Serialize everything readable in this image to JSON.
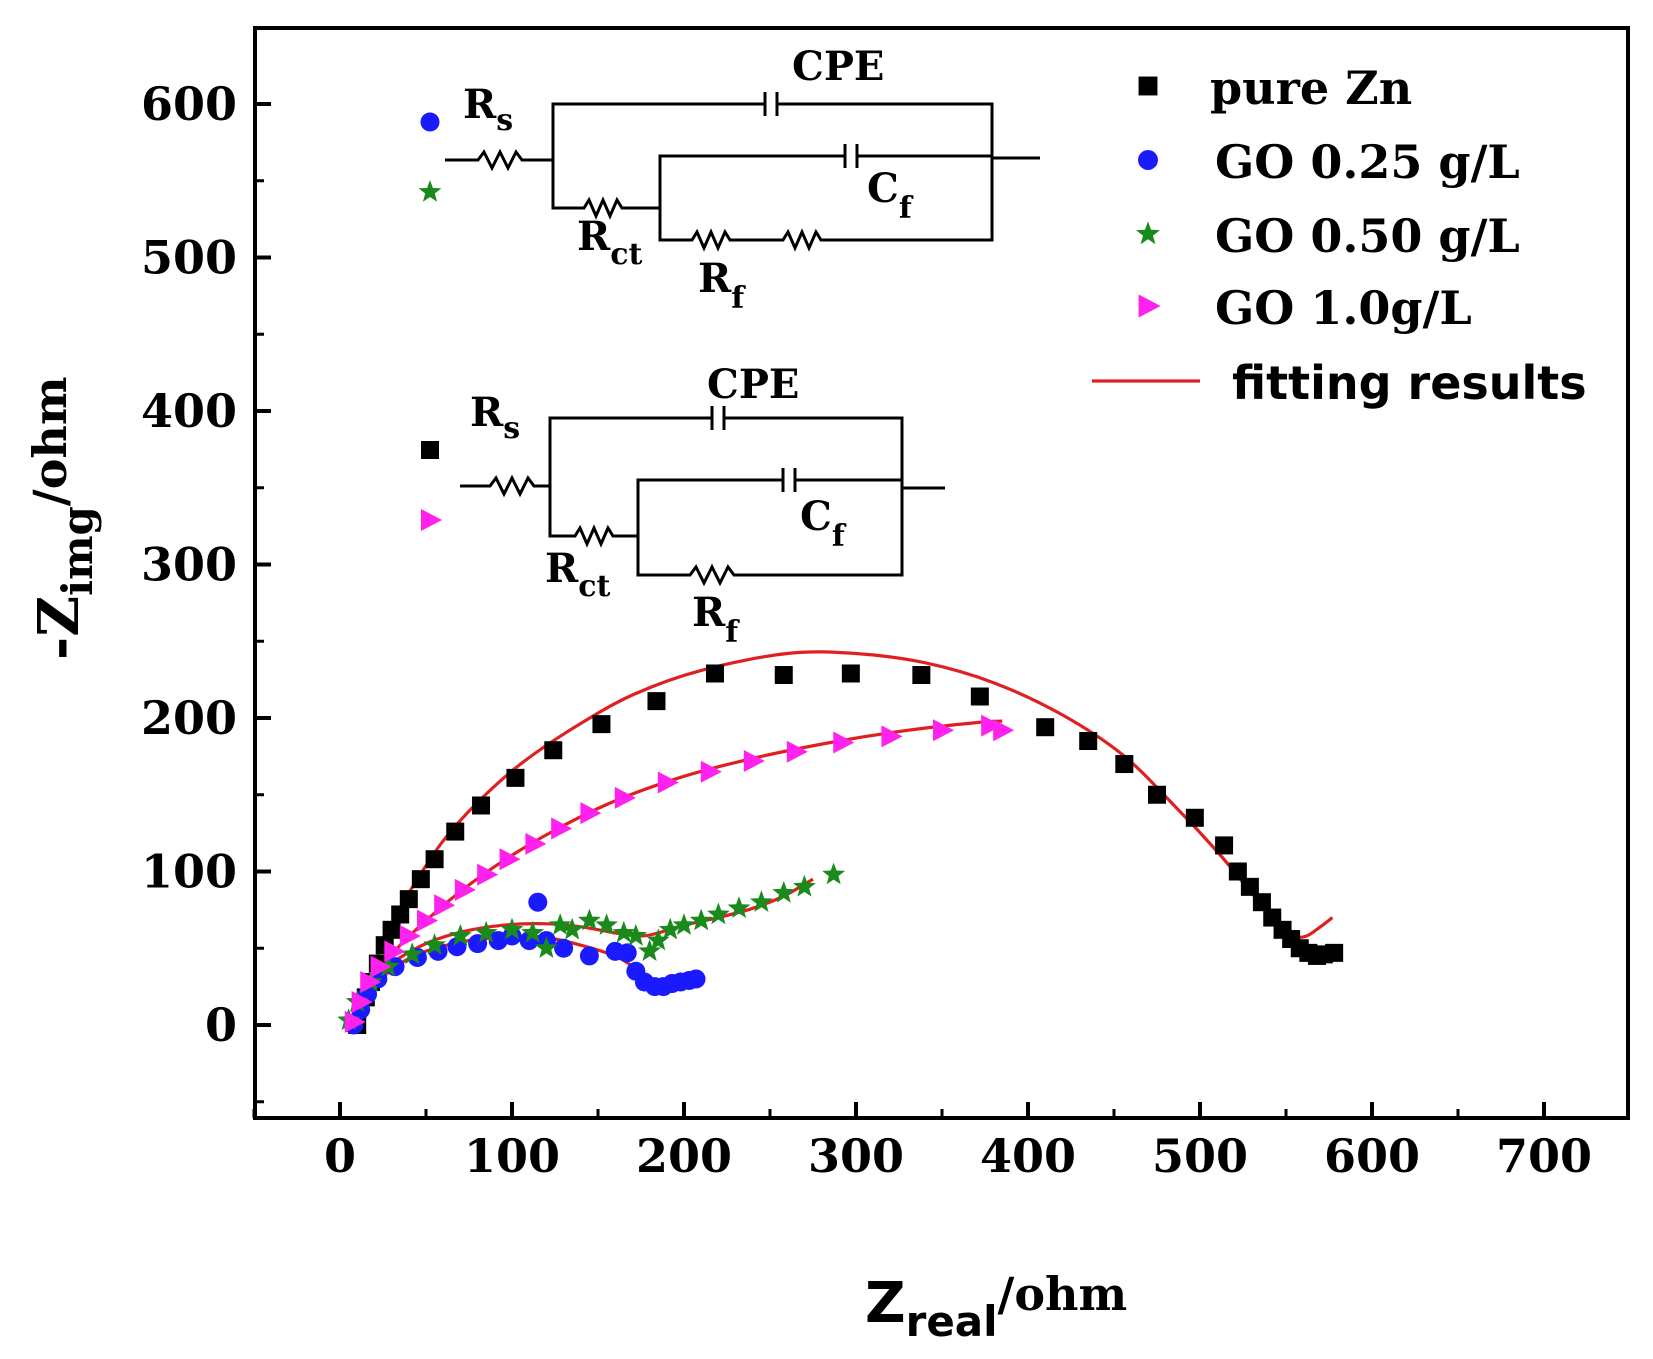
{
  "chart_data": {
    "type": "scatter",
    "title": "",
    "xlabel": {
      "main": "Z",
      "sub": "real",
      "unit": "/ohm"
    },
    "ylabel": {
      "prefix": "-Z",
      "sub": "img",
      "unit": "/ohm"
    },
    "xlim": [
      -50,
      750
    ],
    "ylim": [
      -50,
      650
    ],
    "x_ticks": [
      "0",
      "100",
      "200",
      "300",
      "400",
      "500",
      "600",
      "700"
    ],
    "y_ticks": [
      "0",
      "100",
      "200",
      "300",
      "400",
      "500",
      "600"
    ],
    "grid": false,
    "legend_position": "top-right",
    "series": [
      {
        "name": "pure Zn",
        "marker": "square",
        "color": "#000000",
        "points": [
          [
            10,
            0
          ],
          [
            15,
            18
          ],
          [
            18,
            28
          ],
          [
            22,
            40
          ],
          [
            26,
            52
          ],
          [
            30,
            62
          ],
          [
            35,
            72
          ],
          [
            40,
            82
          ],
          [
            47,
            95
          ],
          [
            55,
            108
          ],
          [
            67,
            126
          ],
          [
            82,
            143
          ],
          [
            102,
            161
          ],
          [
            124,
            179
          ],
          [
            152,
            196
          ],
          [
            184,
            211
          ],
          [
            218,
            229
          ],
          [
            258,
            228
          ],
          [
            297,
            229
          ],
          [
            338,
            228
          ],
          [
            372,
            214
          ],
          [
            410,
            194
          ],
          [
            435,
            185
          ],
          [
            456,
            170
          ],
          [
            475,
            150
          ],
          [
            497,
            135
          ],
          [
            514,
            117
          ],
          [
            522,
            100
          ],
          [
            529,
            90
          ],
          [
            536,
            80
          ],
          [
            542,
            70
          ],
          [
            548,
            62
          ],
          [
            553,
            56
          ],
          [
            558,
            50
          ],
          [
            563,
            47
          ],
          [
            568,
            45
          ],
          [
            572,
            46
          ],
          [
            578,
            47
          ]
        ]
      },
      {
        "name": "GO 0.25 g/L",
        "marker": "circle",
        "color": "#1a1aff",
        "points": [
          [
            8,
            0
          ],
          [
            12,
            10
          ],
          [
            16,
            20
          ],
          [
            22,
            30
          ],
          [
            32,
            38
          ],
          [
            45,
            44
          ],
          [
            57,
            48
          ],
          [
            68,
            51
          ],
          [
            80,
            53
          ],
          [
            92,
            55
          ],
          [
            100,
            58
          ],
          [
            110,
            55
          ],
          [
            115,
            80
          ],
          [
            120,
            55
          ],
          [
            130,
            50
          ],
          [
            145,
            45
          ],
          [
            160,
            48
          ],
          [
            167,
            47
          ],
          [
            172,
            35
          ],
          [
            177,
            28
          ],
          [
            183,
            25
          ],
          [
            188,
            25
          ],
          [
            193,
            27
          ],
          [
            198,
            28
          ],
          [
            203,
            29
          ],
          [
            207,
            30
          ]
        ]
      },
      {
        "name": "GO 0.50 g/L",
        "marker": "star",
        "color": "#1a8a1a",
        "points": [
          [
            5,
            3
          ],
          [
            10,
            15
          ],
          [
            18,
            28
          ],
          [
            28,
            38
          ],
          [
            42,
            46
          ],
          [
            55,
            52
          ],
          [
            70,
            58
          ],
          [
            85,
            60
          ],
          [
            100,
            62
          ],
          [
            112,
            60
          ],
          [
            120,
            50
          ],
          [
            128,
            65
          ],
          [
            135,
            62
          ],
          [
            145,
            68
          ],
          [
            155,
            65
          ],
          [
            165,
            60
          ],
          [
            172,
            58
          ],
          [
            180,
            48
          ],
          [
            185,
            55
          ],
          [
            192,
            62
          ],
          [
            200,
            65
          ],
          [
            210,
            68
          ],
          [
            220,
            72
          ],
          [
            232,
            76
          ],
          [
            245,
            80
          ],
          [
            258,
            86
          ],
          [
            270,
            90
          ],
          [
            287,
            98
          ]
        ]
      },
      {
        "name": "GO 1.0g/L",
        "marker": "triangle",
        "color": "#ff22ee",
        "points": [
          [
            8,
            2
          ],
          [
            12,
            15
          ],
          [
            17,
            28
          ],
          [
            23,
            38
          ],
          [
            31,
            48
          ],
          [
            40,
            58
          ],
          [
            50,
            68
          ],
          [
            60,
            78
          ],
          [
            72,
            88
          ],
          [
            85,
            98
          ],
          [
            98,
            108
          ],
          [
            113,
            118
          ],
          [
            128,
            128
          ],
          [
            145,
            138
          ],
          [
            165,
            148
          ],
          [
            190,
            158
          ],
          [
            215,
            165
          ],
          [
            240,
            172
          ],
          [
            265,
            178
          ],
          [
            292,
            184
          ],
          [
            320,
            188
          ],
          [
            350,
            192
          ],
          [
            378,
            195
          ],
          [
            385,
            192
          ]
        ]
      }
    ],
    "fits": [
      {
        "for": "pure Zn",
        "color": "#e02020",
        "points": [
          [
            10,
            0
          ],
          [
            15,
            22
          ],
          [
            22,
            45
          ],
          [
            32,
            70
          ],
          [
            45,
            95
          ],
          [
            60,
            120
          ],
          [
            80,
            145
          ],
          [
            105,
            170
          ],
          [
            135,
            193
          ],
          [
            170,
            215
          ],
          [
            210,
            231
          ],
          [
            260,
            242
          ],
          [
            300,
            242
          ],
          [
            340,
            236
          ],
          [
            380,
            223
          ],
          [
            420,
            202
          ],
          [
            455,
            176
          ],
          [
            485,
            143
          ],
          [
            510,
            113
          ],
          [
            530,
            86
          ],
          [
            545,
            66
          ],
          [
            555,
            58
          ],
          [
            562,
            58
          ],
          [
            570,
            64
          ],
          [
            577,
            70
          ]
        ]
      },
      {
        "for": "GO 0.25 g/L",
        "color": "#e02020",
        "points": [
          [
            8,
            0
          ],
          [
            14,
            15
          ],
          [
            22,
            28
          ],
          [
            35,
            40
          ],
          [
            50,
            48
          ],
          [
            70,
            54
          ],
          [
            90,
            57
          ],
          [
            110,
            58
          ],
          [
            125,
            56
          ],
          [
            140,
            52
          ],
          [
            155,
            47
          ],
          [
            165,
            42
          ],
          [
            175,
            34
          ],
          [
            183,
            28
          ],
          [
            190,
            27
          ],
          [
            198,
            28
          ]
        ]
      },
      {
        "for": "GO 0.50 g/L",
        "color": "#e02020",
        "points": [
          [
            5,
            0
          ],
          [
            12,
            18
          ],
          [
            22,
            33
          ],
          [
            35,
            44
          ],
          [
            52,
            54
          ],
          [
            72,
            61
          ],
          [
            95,
            65
          ],
          [
            118,
            66
          ],
          [
            140,
            64
          ],
          [
            160,
            60
          ],
          [
            175,
            58
          ],
          [
            185,
            60
          ],
          [
            200,
            65
          ],
          [
            220,
            70
          ],
          [
            240,
            76
          ],
          [
            258,
            84
          ],
          [
            275,
            95
          ]
        ]
      },
      {
        "for": "GO 1.0g/L",
        "color": "#e02020",
        "points": [
          [
            8,
            0
          ],
          [
            14,
            20
          ],
          [
            22,
            35
          ],
          [
            35,
            52
          ],
          [
            50,
            68
          ],
          [
            70,
            87
          ],
          [
            95,
            107
          ],
          [
            125,
            127
          ],
          [
            160,
            146
          ],
          [
            200,
            162
          ],
          [
            245,
            175
          ],
          [
            290,
            185
          ],
          [
            330,
            192
          ],
          [
            370,
            197
          ],
          [
            385,
            198
          ]
        ]
      }
    ],
    "legend": [
      {
        "label": "pure Zn",
        "marker": "square",
        "color": "#000000"
      },
      {
        "label": "GO 0.25 g/L",
        "marker": "circle",
        "color": "#1a1aff"
      },
      {
        "label": "GO 0.50 g/L",
        "marker": "star",
        "color": "#1a8a1a"
      },
      {
        "label": "GO 1.0g/L",
        "marker": "triangle",
        "color": "#ff22ee"
      },
      {
        "label": "fitting results",
        "marker": "line",
        "color": "#e02020"
      }
    ],
    "annotations": {
      "circuit_upper": {
        "rs": "R",
        "rs_sub": "s",
        "cpe": "CPE",
        "rct": "R",
        "rct_sub": "ct",
        "cf": "C",
        "cf_sub": "f",
        "rf": "R",
        "rf_sub": "f",
        "applies_to": [
          "GO 0.25 g/L",
          "GO 0.50 g/L"
        ]
      },
      "circuit_lower": {
        "rs": "R",
        "rs_sub": "s",
        "cpe": "CPE",
        "rct": "R",
        "rct_sub": "ct",
        "cf": "C",
        "cf_sub": "f",
        "rf": "R",
        "rf_sub": "f",
        "applies_to": [
          "pure Zn",
          "GO 1.0g/L"
        ]
      }
    }
  }
}
